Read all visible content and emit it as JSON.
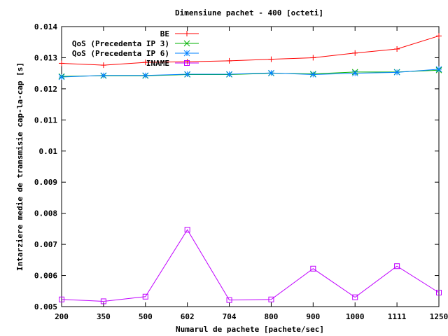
{
  "chart_data": {
    "type": "line",
    "title": "Dimensiune pachet - 400 [octeti]",
    "xlabel": "Numarul de pachete [pachete/sec]",
    "ylabel": "Intarziere medie de transmisie cap-la-cap [s]",
    "categories": [
      "200",
      "350",
      "500",
      "602",
      "704",
      "800",
      "900",
      "1000",
      "1111",
      "1250"
    ],
    "y_ticks": [
      "0.005",
      "0.006",
      "0.007",
      "0.008",
      "0.009",
      "0.01",
      "0.011",
      "0.012",
      "0.013",
      "0.014"
    ],
    "ylim": [
      0.005,
      0.014
    ],
    "grid": false,
    "legend_position": "top-right",
    "series": [
      {
        "name": "BE",
        "color": "#ff0000",
        "marker": "plus",
        "values": [
          0.01282,
          0.01276,
          0.01285,
          0.01287,
          0.0129,
          0.01295,
          0.013,
          0.01315,
          0.01328,
          0.0137
        ]
      },
      {
        "name": "QoS (Precedenta IP 3)",
        "color": "#00b000",
        "marker": "x",
        "values": [
          0.0124,
          0.01242,
          0.01242,
          0.01246,
          0.01246,
          0.0125,
          0.01248,
          0.01254,
          0.01254,
          0.0126
        ]
      },
      {
        "name": "QoS (Precedenta IP 6)",
        "color": "#0080ff",
        "marker": "star",
        "values": [
          0.01238,
          0.01243,
          0.01243,
          0.01247,
          0.01247,
          0.01251,
          0.01246,
          0.0125,
          0.01253,
          0.01263
        ]
      },
      {
        "name": "INAME",
        "color": "#c000ff",
        "marker": "square",
        "values": [
          0.00523,
          0.00517,
          0.00532,
          0.00747,
          0.00521,
          0.00523,
          0.00622,
          0.0053,
          0.0063,
          0.00545
        ]
      }
    ]
  }
}
